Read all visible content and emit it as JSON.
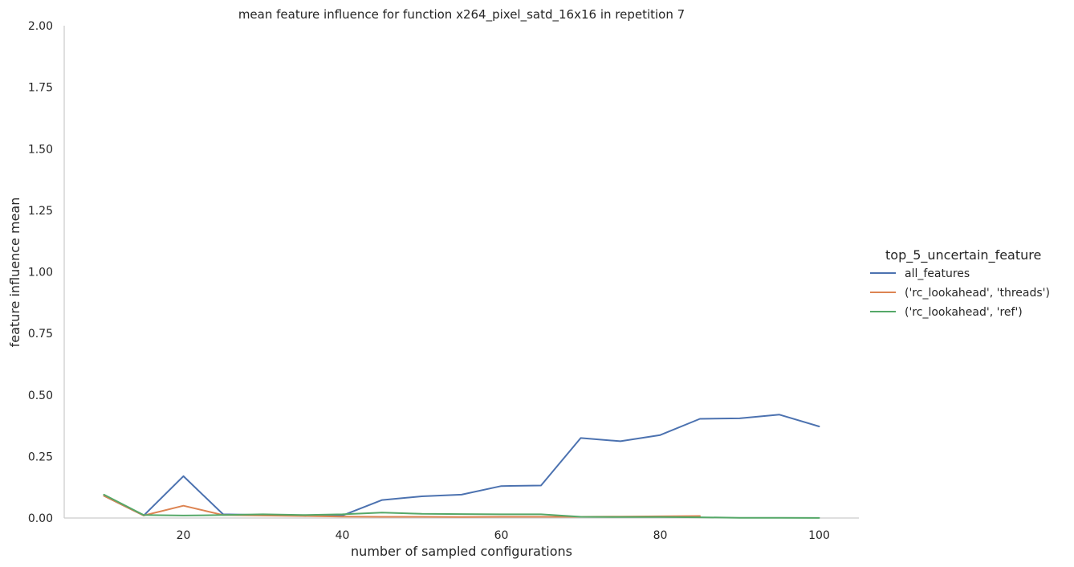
{
  "chart_data": {
    "type": "line",
    "title": "mean feature influence for function x264_pixel_satd_16x16 in repetition 7",
    "xlabel": "number of sampled configurations",
    "ylabel": "feature influence mean",
    "xlim": [
      5,
      105
    ],
    "ylim": [
      0,
      2
    ],
    "xticks": [
      20,
      40,
      60,
      80,
      100
    ],
    "yticks": [
      0.0,
      0.25,
      0.5,
      0.75,
      1.0,
      1.25,
      1.5,
      1.75,
      2.0
    ],
    "ytick_labels": [
      "0.00",
      "0.25",
      "0.50",
      "0.75",
      "1.00",
      "1.25",
      "1.50",
      "1.75",
      "2.00"
    ],
    "grid": false,
    "legend": {
      "title": "top_5_uncertain_feature",
      "placement": "right"
    },
    "series": [
      {
        "name": "all_features",
        "color": "#4c72b0",
        "x": [
          10,
          15,
          20,
          25,
          30,
          35,
          40,
          45,
          50,
          55,
          60,
          65,
          70,
          75,
          80,
          85,
          90,
          95,
          100
        ],
        "values": [
          0.09,
          0.01,
          0.17,
          0.015,
          0.012,
          0.01,
          0.01,
          0.073,
          0.088,
          0.095,
          0.13,
          0.132,
          0.325,
          0.312,
          0.337,
          0.403,
          0.405,
          0.42,
          0.372
        ]
      },
      {
        "name": "('rc_lookahead', 'threads')",
        "color": "#dd8452",
        "x": [
          10,
          15,
          20,
          25,
          30,
          35,
          40,
          45,
          50,
          55,
          60,
          65,
          70,
          75,
          80,
          85
        ],
        "values": [
          0.09,
          0.01,
          0.05,
          0.012,
          0.01,
          0.008,
          0.006,
          0.005,
          0.005,
          0.004,
          0.005,
          0.005,
          0.005,
          0.006,
          0.007,
          0.008
        ]
      },
      {
        "name": "('rc_lookahead', 'ref')",
        "color": "#55a868",
        "x": [
          10,
          15,
          20,
          25,
          30,
          35,
          40,
          45,
          50,
          55,
          60,
          65,
          70,
          75,
          80,
          85,
          90,
          95,
          100
        ],
        "values": [
          0.095,
          0.012,
          0.01,
          0.012,
          0.015,
          0.012,
          0.015,
          0.022,
          0.017,
          0.016,
          0.015,
          0.015,
          0.005,
          0.004,
          0.004,
          0.003,
          0.001,
          0.0005,
          0.0003
        ]
      }
    ]
  }
}
